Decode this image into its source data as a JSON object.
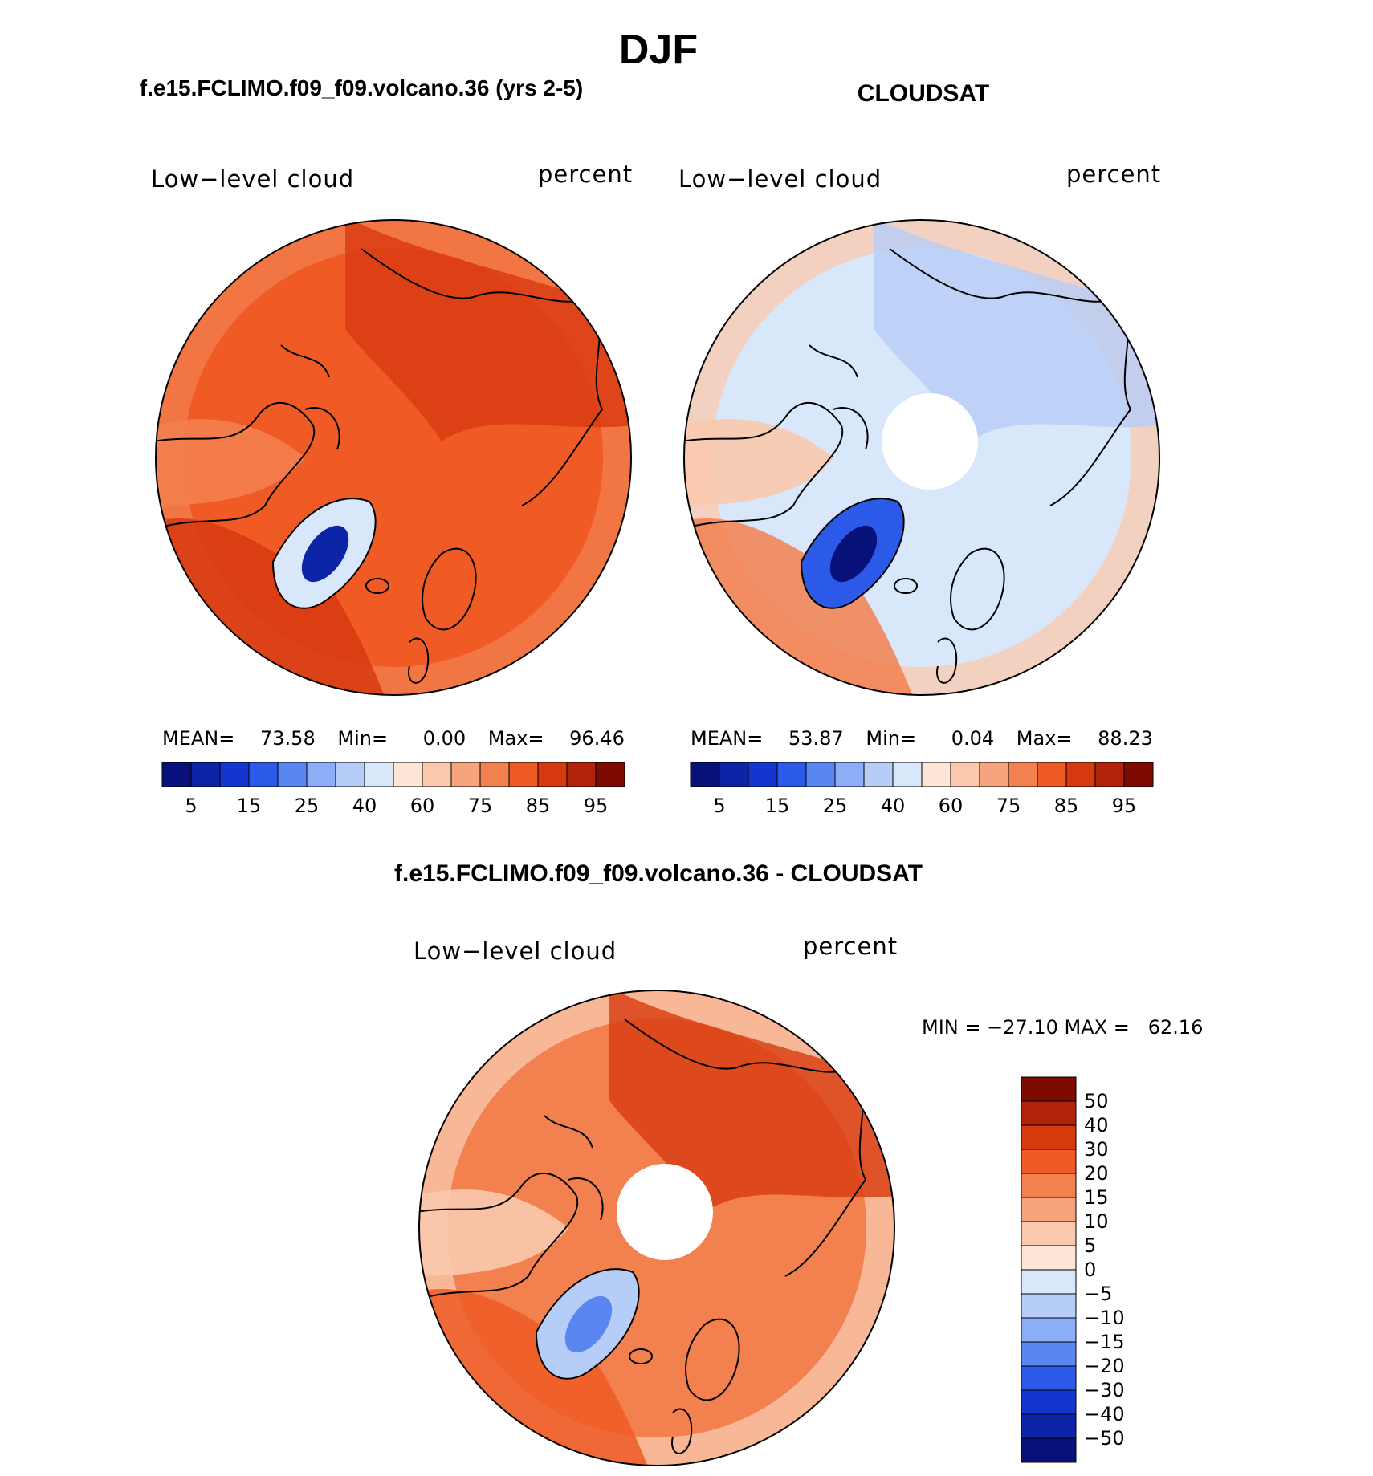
{
  "page_title": "DJF",
  "palette_abs": [
    "#08107a",
    "#0b24a8",
    "#1436d0",
    "#2b5ae8",
    "#5a86f2",
    "#8cadf7",
    "#b6cdf8",
    "#d9e7fb",
    "#fde6d6",
    "#fac9ad",
    "#f7a47e",
    "#f3804f",
    "#ef5a25",
    "#d83a10",
    "#b3230a",
    "#7e0b02"
  ],
  "palette_diff": [
    "#08107a",
    "#0b24a8",
    "#1436d0",
    "#2b5ae8",
    "#5a86f2",
    "#8cadf7",
    "#b6cdf8",
    "#d9e7fb",
    "#fde6d6",
    "#fac9ad",
    "#f7a47e",
    "#f3804f",
    "#ef5a25",
    "#d83a10",
    "#b3230a",
    "#7e0b02"
  ],
  "panels": [
    {
      "title": "f.e15.FCLIMO.f09_f09.volcano.36 (yrs 2-5)",
      "variable": "Low−level cloud",
      "units": "percent",
      "stats": {
        "mean_label": "MEAN=",
        "mean": "73.58",
        "min_label": "Min=",
        "min": "0.00",
        "max_label": "Max=",
        "max": "96.46"
      },
      "colorbar_ticks": [
        "5",
        "15",
        "25",
        "40",
        "60",
        "75",
        "85",
        "95"
      ],
      "pole_hole": false,
      "regions": {
        "background": "#ef5a25",
        "land_high": "#d83a10",
        "ring": "#f3804f",
        "greenland": "#d9e7fb",
        "greenland_core": "#0b24a8",
        "atlantic": "#d83a10"
      }
    },
    {
      "title": "CLOUDSAT",
      "variable": "Low−level cloud",
      "units": "percent",
      "stats": {
        "mean_label": "MEAN=",
        "mean": "53.87",
        "min_label": "Min=",
        "min": "0.04",
        "max_label": "Max=",
        "max": "88.23"
      },
      "colorbar_ticks": [
        "5",
        "15",
        "25",
        "40",
        "60",
        "75",
        "85",
        "95"
      ],
      "pole_hole": true,
      "regions": {
        "background": "#d9e7fb",
        "land_high": "#b6cdf8",
        "ring": "#fac9ad",
        "greenland": "#2b5ae8",
        "greenland_core": "#08107a",
        "atlantic": "#f3804f"
      }
    }
  ],
  "diff_panel": {
    "title": "f.e15.FCLIMO.f09_f09.volcano.36 - CLOUDSAT",
    "variable": "Low−level cloud",
    "units": "percent",
    "minmax_text": "MIN = −27.10 MAX =   62.16",
    "colorbar_ticks": [
      "50",
      "40",
      "30",
      "20",
      "15",
      "10",
      "5",
      "0",
      "−5",
      "−10",
      "−15",
      "−20",
      "−30",
      "−40",
      "−50"
    ],
    "pole_hole": true,
    "regions": {
      "background": "#f3804f",
      "land_high": "#d83a10",
      "ring": "#fac9ad",
      "greenland": "#b6cdf8",
      "greenland_core": "#5a86f2",
      "atlantic": "#ef5a25"
    }
  }
}
